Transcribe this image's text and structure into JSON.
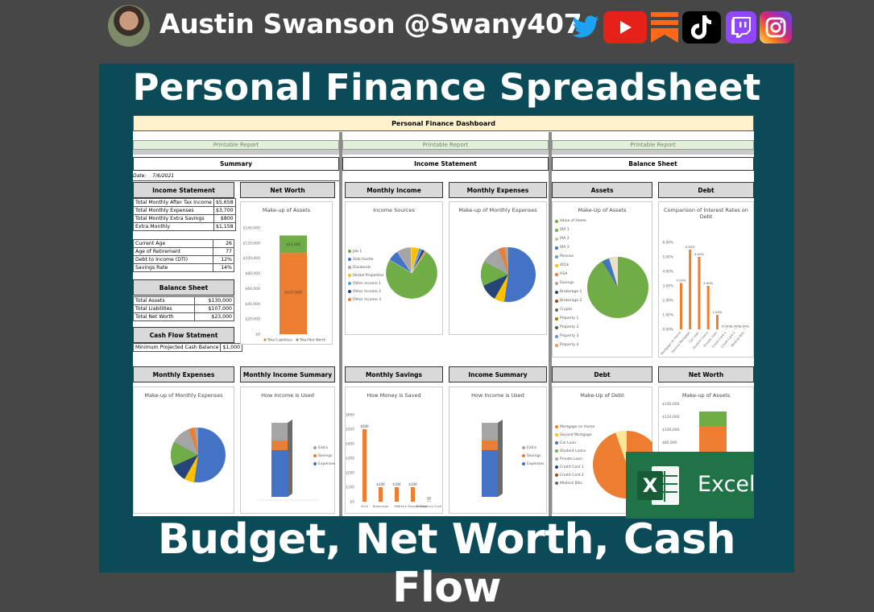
{
  "header": {
    "author": "Austin Swanson @Swany407",
    "social_icons": [
      "twitter-icon",
      "youtube-icon",
      "substack-icon",
      "tiktok-icon",
      "twitch-icon",
      "instagram-icon"
    ]
  },
  "title": "Personal Finance Spreadsheet",
  "subtitle": "Budget, Net Worth, Cash Flow",
  "excel_label": "Excel",
  "sheet": {
    "dashboard_title": "Personal Finance Dashboard",
    "printable_label": "Printable Report",
    "sections": [
      "Summary",
      "Income Statement",
      "Balance Sheet"
    ],
    "date_label": "Date:",
    "date_value": "7/6/2021",
    "summary": {
      "income_statement_header": "Income Statement",
      "income_rows": [
        {
          "label": "Total Monthly After Tax Income",
          "value": "$5,658"
        },
        {
          "label": "Total Monthly Expenses",
          "value": "$3,700"
        },
        {
          "label": "Total Monthly Extra Savings",
          "value": "$800"
        },
        {
          "label": "Extra Monthly",
          "value": "$1,158"
        }
      ],
      "stat_rows": [
        {
          "label": "Current Age",
          "value": "26"
        },
        {
          "label": "Age of Retirement",
          "value": "77"
        },
        {
          "label": "Debt to Income (DTI)",
          "value": "12%"
        },
        {
          "label": "Savings Rate",
          "value": "14%"
        }
      ],
      "balance_header": "Balance Sheet",
      "balance_rows": [
        {
          "label": "Total Assets",
          "value": "$130,000"
        },
        {
          "label": "Total Liabilities",
          "value": "$107,000"
        },
        {
          "label": "Total Net Worth",
          "value": "$23,000"
        }
      ],
      "cashflow_header": "Cash Flow Statment",
      "cashflow_rows": [
        {
          "label": "Minimum Projected Cash Balance",
          "value": "$1,000"
        }
      ],
      "net_worth_header": "Net Worth",
      "net_worth_chart_title": "Make-up of Assets",
      "net_worth_legend": [
        "Total Liabilities",
        "Total Net Worth"
      ]
    },
    "panel_headers_top": [
      "Monthly Income",
      "Monthly Expenses",
      "Assets",
      "Debt"
    ],
    "panel_headers_bottom": [
      "Monthly Expenses",
      "Monthly Income Summary",
      "Monthly Savings",
      "Income Summary",
      "Debt",
      "Net Worth"
    ],
    "chart_titles": {
      "income_sources": "Income Sources",
      "monthly_expenses": "Make-up of Monthly Expenses",
      "assets": "Make-Up of Assets",
      "debt_rates": "Comparison of Interest Rates on Debt",
      "income_used": "How Income is Used",
      "money_saved": "How Money is Saved",
      "debt_makeup": "Make-Up of Debt",
      "net_worth_assets": "Make-up of Assets"
    },
    "income_legend": [
      "Job 1",
      "Side Hustle",
      "Dividends",
      "Rental Properties",
      "Other Income 1",
      "Other Income 2",
      "Other Income 3"
    ],
    "assets_legend": [
      "Value of Home",
      "IRA 1",
      "IRA 2",
      "IRA 3",
      "Pension",
      "401k",
      "HSA",
      "Savings",
      "Brokerage 1",
      "Brokerage 2",
      "Crypto",
      "Property 1",
      "Property 2",
      "Property 3",
      "Property 4"
    ],
    "debt_legend": [
      "Mortgage on Home",
      "Second Mortgage",
      "Car Loan",
      "Student Loans",
      "Private Loan",
      "Credit Card 1",
      "Credit Card 2",
      "Medical Bills"
    ],
    "summary_legend": [
      "Extra",
      "Savings",
      "Expenses"
    ],
    "colors": {
      "orange": "#ed7d31",
      "green": "#70ad47",
      "blue": "#4472c4",
      "gray": "#a5a5a5",
      "yellow": "#ffc000",
      "excel": "#1f7346",
      "teal": "#0b4a57"
    }
  },
  "chart_data": [
    {
      "type": "bar",
      "title": "Make-up of Assets",
      "categories": [
        "Net Worth"
      ],
      "series": [
        {
          "name": "Total Liabilities",
          "values": [
            107000
          ]
        },
        {
          "name": "Total Net Worth",
          "values": [
            23000
          ]
        }
      ],
      "ylim": [
        0,
        140000
      ],
      "yticks": [
        "$0",
        "$20,000",
        "$40,000",
        "$60,000",
        "$80,000",
        "$100,000",
        "$120,000",
        "$140,000"
      ],
      "data_labels": [
        "$107,000",
        "$23,000"
      ]
    },
    {
      "type": "pie",
      "title": "Income Sources",
      "labels": [
        "Job 1",
        "Side Hustle",
        "Dividends",
        "Rental Properties",
        "Other Income 1",
        "Other Income 2",
        "Other Income 3"
      ],
      "values": [
        74,
        7,
        9,
        5,
        2,
        2,
        1
      ]
    },
    {
      "type": "bar",
      "title": "Comparison of Interest Rates on Debt",
      "categories": [
        "Mortgage on Home",
        "Second Mortgage",
        "Car Loan",
        "Student Loans",
        "Private Loan",
        "Credit Card 1",
        "Credit Card 2",
        "Medical Bills"
      ],
      "values": [
        3.2,
        5.5,
        5.0,
        3.0,
        1.0,
        0.0,
        0.0,
        0.0
      ],
      "ylim": [
        0,
        6
      ],
      "yticks": [
        "0.00%",
        "1.00%",
        "2.00%",
        "3.00%",
        "4.00%",
        "5.00%",
        "6.00%"
      ]
    },
    {
      "type": "bar",
      "title": "How Money is Saved",
      "categories": [
        "401k",
        "Brokerage",
        "IRA",
        "Extra Toward Debt",
        "Emergency Fund"
      ],
      "values": [
        500,
        100,
        100,
        100,
        0
      ],
      "ylim": [
        0,
        600
      ],
      "yticks": [
        "$0",
        "$100",
        "$200",
        "$300",
        "$400",
        "$500",
        "$600"
      ],
      "data_labels": [
        "$500",
        "$100",
        "$100",
        "$100",
        "$0"
      ]
    }
  ]
}
